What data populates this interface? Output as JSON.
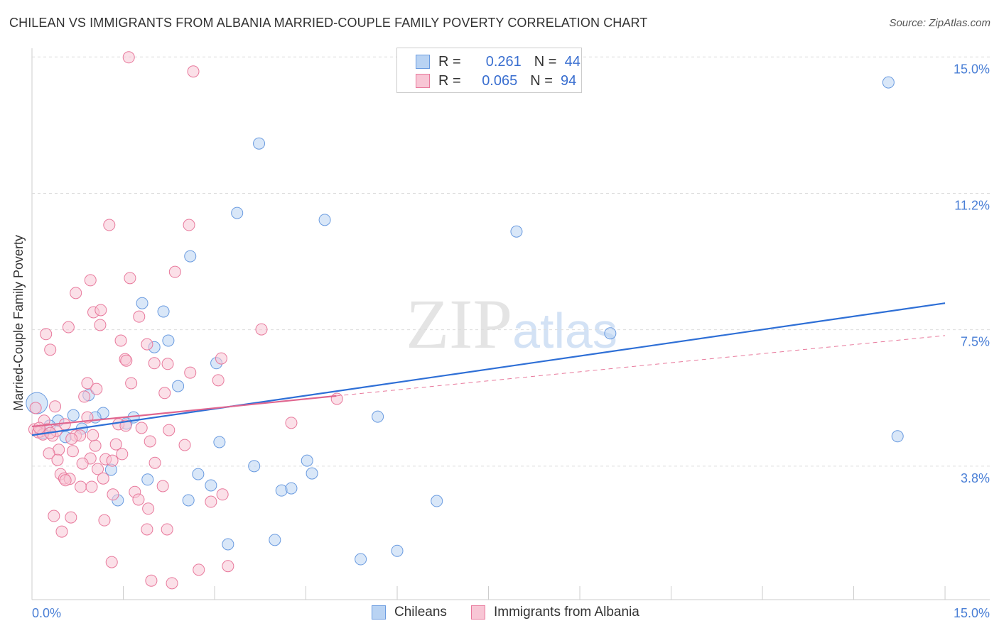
{
  "title": "CHILEAN VS IMMIGRANTS FROM ALBANIA MARRIED-COUPLE FAMILY POVERTY CORRELATION CHART",
  "source": "Source: ZipAtlas.com",
  "watermark": "ZIPatlas",
  "chart_data": {
    "type": "scatter",
    "xlabel": "",
    "ylabel": "Married-Couple Family Poverty",
    "xlim": [
      0,
      15
    ],
    "ylim": [
      0,
      15.5
    ],
    "x_tick_labels": [
      "0.0%",
      "15.0%"
    ],
    "y_ticks": [
      {
        "v": 15.0,
        "label": "15.0%"
      },
      {
        "v": 11.25,
        "label": "11.2%"
      },
      {
        "v": 7.5,
        "label": "7.5%"
      },
      {
        "v": 3.75,
        "label": "3.8%"
      }
    ],
    "legend_placement": "bottom",
    "series": [
      {
        "name": "Chileans",
        "color": "#6a9be0",
        "fill": "#b9d3f3",
        "R": "0.261",
        "N": "44",
        "trend": [
          [
            0,
            4.6
          ],
          [
            15,
            8.23
          ]
        ],
        "points": [
          [
            14.07,
            14.3
          ],
          [
            3.73,
            12.62
          ],
          [
            3.37,
            10.71
          ],
          [
            4.81,
            10.52
          ],
          [
            7.96,
            10.2
          ],
          [
            2.6,
            9.52
          ],
          [
            1.81,
            8.23
          ],
          [
            2.16,
            8.0
          ],
          [
            2.24,
            7.2
          ],
          [
            2.01,
            7.02
          ],
          [
            9.5,
            7.4
          ],
          [
            3.03,
            6.58
          ],
          [
            2.4,
            5.95
          ],
          [
            0.93,
            5.7
          ],
          [
            0.08,
            5.48
          ],
          [
            1.17,
            5.21
          ],
          [
            0.68,
            5.15
          ],
          [
            1.04,
            5.09
          ],
          [
            1.67,
            5.09
          ],
          [
            5.68,
            5.11
          ],
          [
            0.43,
            5.0
          ],
          [
            0.29,
            4.86
          ],
          [
            0.82,
            4.78
          ],
          [
            1.55,
            4.92
          ],
          [
            0.18,
            4.66
          ],
          [
            0.55,
            4.55
          ],
          [
            14.22,
            4.57
          ],
          [
            3.08,
            4.41
          ],
          [
            4.52,
            3.9
          ],
          [
            1.3,
            3.65
          ],
          [
            3.65,
            3.75
          ],
          [
            2.73,
            3.53
          ],
          [
            4.6,
            3.55
          ],
          [
            1.9,
            3.38
          ],
          [
            2.94,
            3.22
          ],
          [
            4.1,
            3.08
          ],
          [
            4.26,
            3.14
          ],
          [
            1.41,
            2.81
          ],
          [
            2.57,
            2.81
          ],
          [
            6.65,
            2.79
          ],
          [
            3.22,
            1.6
          ],
          [
            3.99,
            1.72
          ],
          [
            6.0,
            1.42
          ],
          [
            5.4,
            1.19
          ]
        ]
      },
      {
        "name": "Immigrants from Albania",
        "color": "#e8799c",
        "fill": "#f8c6d5",
        "R": "0.065",
        "N": "94",
        "trend": [
          [
            0,
            4.84
          ],
          [
            5.0,
            5.68
          ]
        ],
        "trend_dashed": [
          [
            5.0,
            5.68
          ],
          [
            15,
            7.34
          ]
        ],
        "points": [
          [
            1.59,
            14.99
          ],
          [
            2.65,
            14.6
          ],
          [
            1.27,
            10.38
          ],
          [
            2.58,
            10.38
          ],
          [
            2.35,
            9.09
          ],
          [
            1.61,
            8.92
          ],
          [
            0.96,
            8.86
          ],
          [
            0.72,
            8.51
          ],
          [
            1.01,
            7.98
          ],
          [
            1.13,
            8.04
          ],
          [
            1.76,
            7.86
          ],
          [
            1.12,
            7.63
          ],
          [
            0.6,
            7.57
          ],
          [
            3.77,
            7.51
          ],
          [
            0.23,
            7.38
          ],
          [
            1.46,
            7.2
          ],
          [
            1.89,
            7.1
          ],
          [
            0.3,
            6.95
          ],
          [
            1.53,
            6.69
          ],
          [
            1.55,
            6.65
          ],
          [
            2.01,
            6.58
          ],
          [
            2.23,
            6.56
          ],
          [
            3.11,
            6.71
          ],
          [
            2.6,
            6.32
          ],
          [
            3.06,
            6.11
          ],
          [
            0.91,
            6.03
          ],
          [
            1.63,
            6.03
          ],
          [
            1.06,
            5.87
          ],
          [
            2.18,
            5.76
          ],
          [
            0.86,
            5.66
          ],
          [
            5.01,
            5.6
          ],
          [
            0.38,
            5.39
          ],
          [
            0.06,
            5.35
          ],
          [
            0.91,
            5.09
          ],
          [
            4.26,
            4.94
          ],
          [
            0.2,
            5.0
          ],
          [
            0.54,
            4.9
          ],
          [
            1.42,
            4.9
          ],
          [
            1.54,
            4.86
          ],
          [
            1.8,
            4.8
          ],
          [
            2.25,
            4.74
          ],
          [
            0.04,
            4.76
          ],
          [
            0.14,
            4.7
          ],
          [
            0.25,
            4.76
          ],
          [
            0.34,
            4.59
          ],
          [
            0.72,
            4.59
          ],
          [
            0.79,
            4.59
          ],
          [
            1.94,
            4.43
          ],
          [
            2.51,
            4.33
          ],
          [
            1.04,
            4.31
          ],
          [
            1.38,
            4.35
          ],
          [
            0.44,
            4.2
          ],
          [
            0.28,
            4.1
          ],
          [
            0.67,
            4.16
          ],
          [
            1.48,
            4.08
          ],
          [
            0.96,
            3.96
          ],
          [
            1.21,
            3.94
          ],
          [
            1.32,
            3.9
          ],
          [
            0.42,
            3.92
          ],
          [
            2.02,
            3.84
          ],
          [
            0.83,
            3.82
          ],
          [
            1.08,
            3.67
          ],
          [
            0.47,
            3.53
          ],
          [
            0.53,
            3.41
          ],
          [
            0.62,
            3.4
          ],
          [
            0.55,
            3.36
          ],
          [
            1.17,
            3.41
          ],
          [
            0.8,
            3.18
          ],
          [
            0.98,
            3.18
          ],
          [
            2.15,
            3.2
          ],
          [
            1.69,
            3.04
          ],
          [
            3.13,
            2.97
          ],
          [
            2.94,
            2.77
          ],
          [
            1.33,
            2.97
          ],
          [
            1.75,
            2.83
          ],
          [
            1.91,
            2.58
          ],
          [
            0.36,
            2.38
          ],
          [
            0.64,
            2.34
          ],
          [
            1.19,
            2.26
          ],
          [
            1.89,
            2.01
          ],
          [
            2.22,
            2.01
          ],
          [
            0.49,
            1.95
          ],
          [
            1.31,
            1.11
          ],
          [
            3.22,
            1.0
          ],
          [
            2.74,
            0.9
          ],
          [
            1.96,
            0.6
          ],
          [
            2.3,
            0.53
          ],
          [
            0.1,
            4.68
          ],
          [
            0.18,
            4.62
          ],
          [
            0.4,
            4.72
          ],
          [
            0.65,
            4.5
          ],
          [
            1.0,
            4.6
          ],
          [
            0.12,
            4.8
          ],
          [
            0.3,
            4.66
          ]
        ]
      }
    ]
  }
}
